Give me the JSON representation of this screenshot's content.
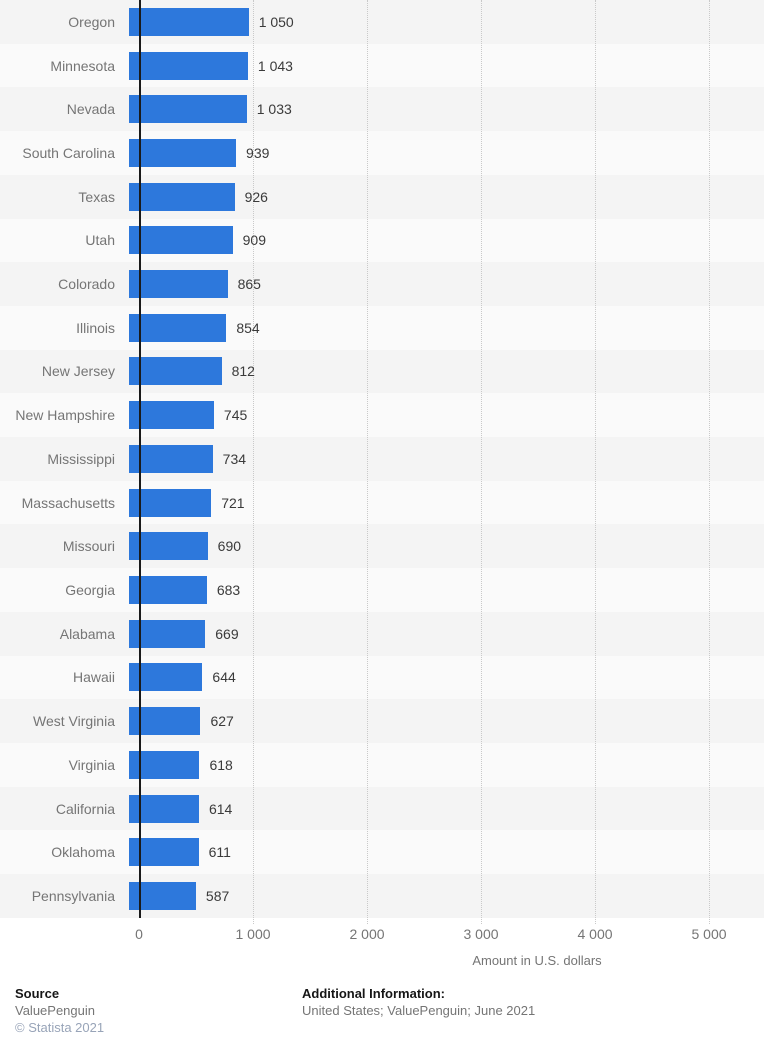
{
  "chart_data": {
    "type": "bar",
    "orientation": "horizontal",
    "categories": [
      "Oregon",
      "Minnesota",
      "Nevada",
      "South Carolina",
      "Texas",
      "Utah",
      "Colorado",
      "Illinois",
      "New Jersey",
      "New Hampshire",
      "Mississippi",
      "Massachusetts",
      "Missouri",
      "Georgia",
      "Alabama",
      "Hawaii",
      "West Virginia",
      "Virginia",
      "California",
      "Oklahoma",
      "Pennsylvania"
    ],
    "values": [
      1050,
      1043,
      1033,
      939,
      926,
      909,
      865,
      854,
      812,
      745,
      734,
      721,
      690,
      683,
      669,
      644,
      627,
      618,
      614,
      611,
      587
    ],
    "value_labels": [
      "1 050",
      "1 043",
      "1 033",
      "939",
      "926",
      "909",
      "865",
      "854",
      "812",
      "745",
      "734",
      "721",
      "690",
      "683",
      "669",
      "644",
      "627",
      "618",
      "614",
      "611",
      "587"
    ],
    "title": "",
    "xlabel": "Amount in U.S. dollars",
    "ylabel": "",
    "xlim": [
      0,
      5000
    ],
    "x_ticks": {
      "values": [
        0,
        1000,
        2000,
        3000,
        4000,
        5000
      ],
      "labels": [
        "0",
        "1 000",
        "2 000",
        "3 000",
        "4 000",
        "5 000"
      ]
    },
    "grid": "vertical-dotted",
    "legend": "none"
  },
  "colors": {
    "bar": "#2d78dc",
    "stripe_odd": "#f4f4f4",
    "stripe_even": "#fafafa",
    "gridline": "#c9c9c9",
    "axis_line": "#1a1a1a",
    "category_text": "#757575",
    "value_text": "#3a3a3a",
    "copyright_text": "#98a4b8"
  },
  "footer": {
    "source_heading": "Source",
    "source_name": "ValuePenguin",
    "copyright": "© Statista 2021",
    "additional_heading": "Additional Information:",
    "additional_text": "United States; ValuePenguin; June 2021"
  }
}
